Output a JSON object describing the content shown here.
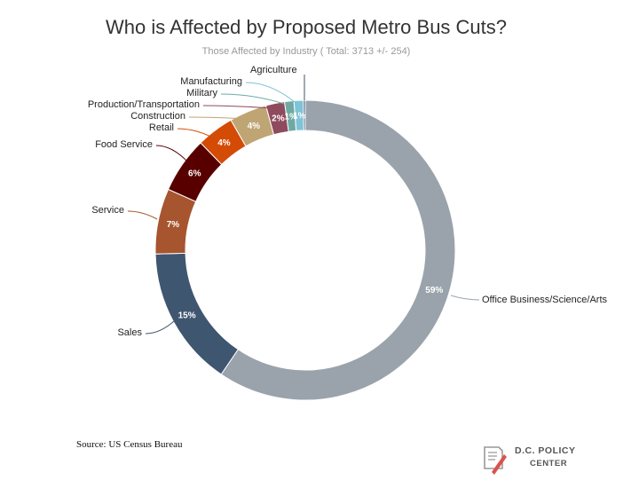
{
  "chart_data": {
    "type": "pie",
    "variant": "donut",
    "title": "Who is Affected by Proposed Metro Bus Cuts?",
    "subtitle": "Those Affected by Industry ( Total: 3713 +/- 254)",
    "slices": [
      {
        "name": "Office Business/Science/Arts",
        "value": 59,
        "label": "59%",
        "color": "#9aa3ab"
      },
      {
        "name": "Sales",
        "value": 15,
        "label": "15%",
        "color": "#3f5670"
      },
      {
        "name": "Service",
        "value": 7,
        "label": "7%",
        "color": "#a6552e"
      },
      {
        "name": "Food Service",
        "value": 6,
        "label": "6%",
        "color": "#580000"
      },
      {
        "name": "Retail",
        "value": 4,
        "label": "4%",
        "color": "#d34b05"
      },
      {
        "name": "Construction",
        "value": 4,
        "label": "4%",
        "color": "#bfa574"
      },
      {
        "name": "Production/Transportation",
        "value": 2,
        "label": "2%",
        "color": "#8f4a5e"
      },
      {
        "name": "Military",
        "value": 1,
        "label": "1%",
        "color": "#6fa9a3"
      },
      {
        "name": "Manufacturing",
        "value": 1,
        "label": "1%",
        "color": "#7ec3d6"
      },
      {
        "name": "Agriculture",
        "value": 0.2,
        "label": "",
        "color": "#3f5670"
      }
    ]
  },
  "source": "Source: US Census Bureau",
  "logo": {
    "line1": "D.C. POLICY",
    "line2": "CENTER"
  }
}
